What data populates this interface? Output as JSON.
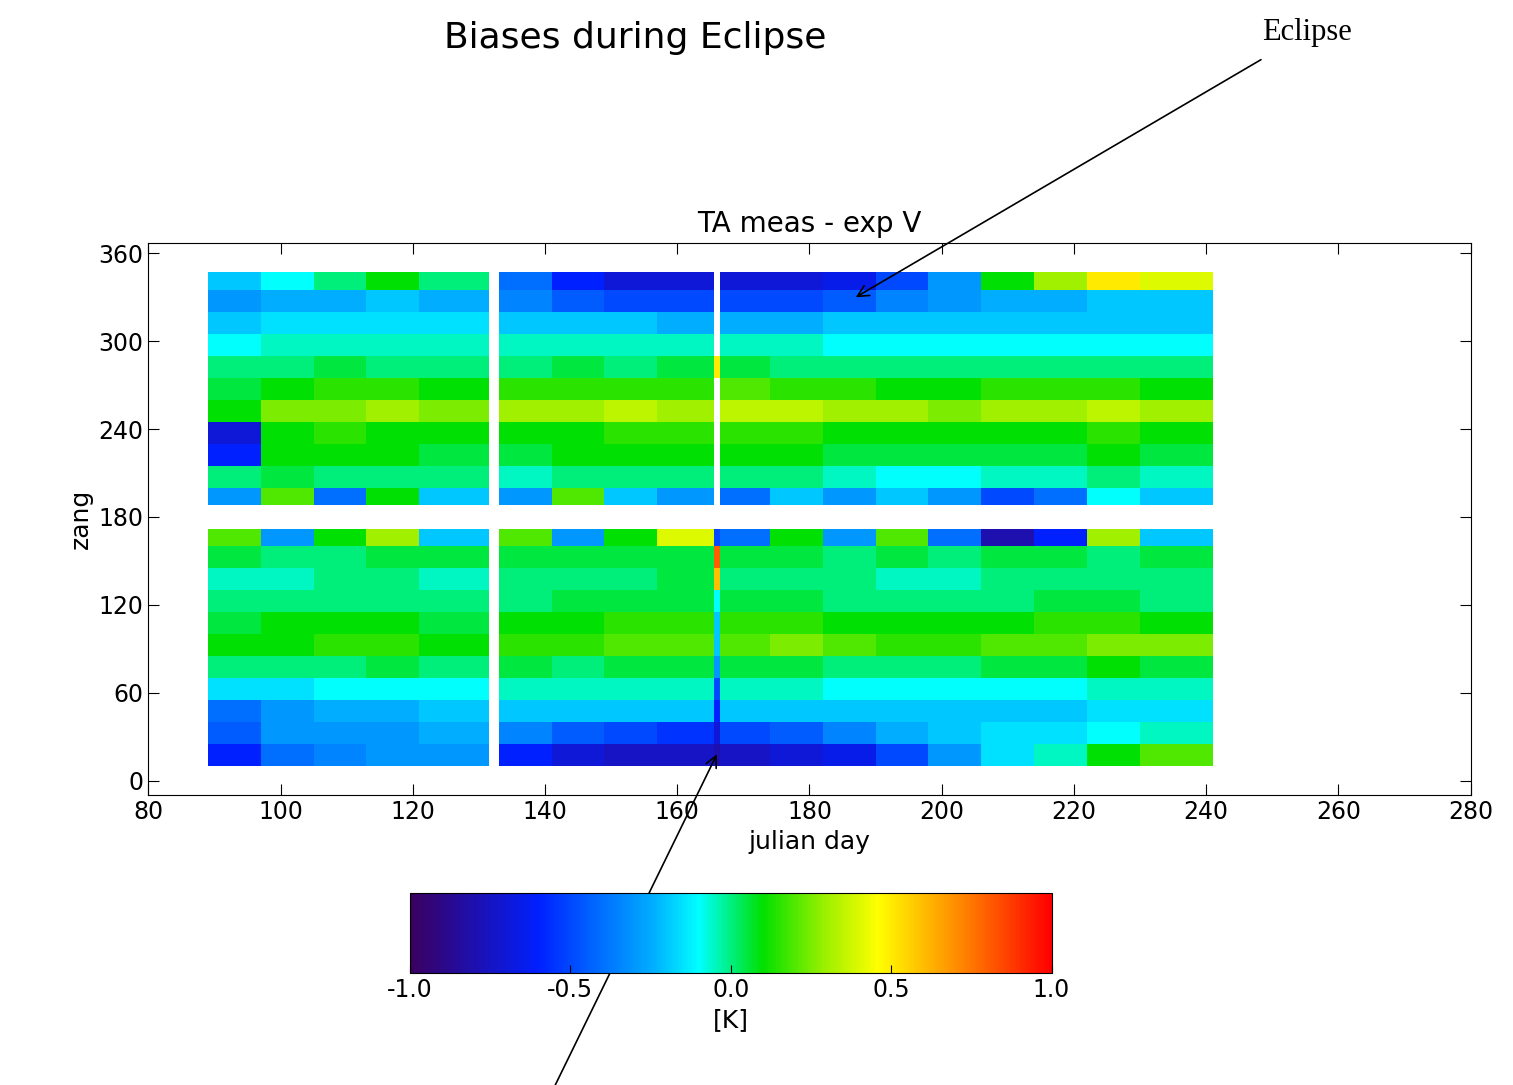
{
  "chart_data": {
    "type": "heatmap",
    "title": "Biases during Eclipse",
    "subtitle": "TA meas - exp V",
    "x_label": "julian day",
    "y_label": "zang",
    "xlim": [
      80,
      280
    ],
    "xticks": [
      80,
      100,
      120,
      140,
      160,
      180,
      200,
      220,
      240,
      260,
      280
    ],
    "ylim": [
      -10,
      367
    ],
    "yticks": [
      0,
      60,
      120,
      180,
      240,
      300,
      360
    ],
    "x_edges": [
      89,
      97,
      105,
      113,
      121,
      131.5,
      133,
      141,
      149,
      157,
      165.5,
      166.5,
      174,
      182,
      190,
      198,
      206,
      214,
      222,
      230,
      241
    ],
    "y_edges": [
      10,
      25,
      40,
      55,
      70,
      85,
      100,
      115,
      130,
      145,
      160,
      172,
      188,
      200,
      215,
      230,
      245,
      260,
      275,
      290,
      305,
      320,
      335,
      347
    ],
    "cells": [
      [
        -0.6,
        -0.4,
        -0.35,
        -0.3,
        -0.3,
        null,
        -0.6,
        -0.7,
        -0.75,
        -0.75,
        -0.8,
        -0.75,
        -0.7,
        -0.65,
        -0.5,
        -0.3,
        -0.15,
        -0.05,
        0.1,
        0.2
      ],
      [
        -0.45,
        -0.3,
        -0.3,
        -0.3,
        -0.25,
        null,
        -0.35,
        -0.45,
        -0.5,
        -0.55,
        -0.7,
        -0.5,
        -0.45,
        -0.35,
        -0.25,
        -0.2,
        -0.15,
        -0.15,
        -0.1,
        -0.05
      ],
      [
        -0.4,
        -0.3,
        -0.25,
        -0.25,
        -0.2,
        null,
        -0.2,
        -0.2,
        -0.2,
        -0.2,
        -0.6,
        -0.2,
        -0.2,
        -0.2,
        -0.2,
        -0.2,
        -0.2,
        -0.2,
        -0.15,
        -0.15
      ],
      [
        -0.15,
        -0.15,
        -0.1,
        -0.1,
        -0.1,
        null,
        -0.05,
        -0.05,
        -0.05,
        -0.05,
        -0.5,
        -0.05,
        -0.05,
        -0.1,
        -0.1,
        -0.1,
        -0.1,
        -0.1,
        -0.05,
        -0.05
      ],
      [
        0.0,
        0.0,
        0.0,
        0.05,
        0.0,
        null,
        0.05,
        0.0,
        0.05,
        0.05,
        -0.3,
        0.05,
        0.05,
        0.0,
        0.0,
        0.0,
        0.05,
        0.05,
        0.1,
        0.05
      ],
      [
        0.1,
        0.1,
        0.15,
        0.15,
        0.1,
        null,
        0.15,
        0.15,
        0.2,
        0.2,
        -0.2,
        0.2,
        0.25,
        0.2,
        0.15,
        0.15,
        0.2,
        0.2,
        0.25,
        0.25
      ],
      [
        0.05,
        0.1,
        0.1,
        0.1,
        0.05,
        null,
        0.1,
        0.1,
        0.15,
        0.15,
        -0.2,
        0.15,
        0.15,
        0.1,
        0.1,
        0.1,
        0.1,
        0.15,
        0.15,
        0.1
      ],
      [
        0.0,
        0.0,
        0.0,
        0.0,
        0.0,
        null,
        0.0,
        0.05,
        0.05,
        0.05,
        -0.1,
        0.05,
        0.05,
        0.0,
        0.0,
        0.0,
        0.0,
        0.05,
        0.05,
        0.0
      ],
      [
        -0.05,
        -0.05,
        0.0,
        0.0,
        -0.05,
        null,
        0.0,
        0.0,
        0.0,
        0.05,
        0.6,
        0.0,
        0.0,
        0.0,
        -0.05,
        -0.05,
        0.0,
        0.0,
        0.0,
        0.0
      ],
      [
        0.05,
        0.0,
        0.0,
        0.05,
        0.05,
        null,
        0.05,
        0.05,
        0.05,
        0.05,
        0.8,
        0.05,
        0.05,
        0.0,
        0.05,
        0.0,
        0.05,
        0.05,
        0.0,
        0.05
      ],
      [
        0.2,
        -0.3,
        0.1,
        0.3,
        -0.2,
        null,
        0.2,
        -0.3,
        0.1,
        0.4,
        -0.5,
        -0.4,
        0.1,
        -0.3,
        0.2,
        -0.4,
        -0.8,
        -0.6,
        0.3,
        -0.2
      ],
      [
        null,
        null,
        null,
        null,
        null,
        null,
        null,
        null,
        null,
        null,
        null,
        null,
        null,
        null,
        null,
        null,
        null,
        null,
        null,
        null
      ],
      [
        -0.3,
        0.2,
        -0.4,
        0.1,
        -0.2,
        null,
        -0.3,
        0.2,
        -0.2,
        -0.3,
        null,
        -0.4,
        -0.2,
        -0.3,
        -0.2,
        -0.3,
        -0.5,
        -0.4,
        -0.1,
        -0.2
      ],
      [
        0.0,
        0.05,
        0.0,
        0.0,
        0.0,
        null,
        -0.05,
        0.0,
        0.0,
        0.0,
        null,
        0.0,
        0.0,
        -0.05,
        -0.1,
        -0.1,
        -0.05,
        -0.05,
        0.0,
        -0.05
      ],
      [
        -0.6,
        0.1,
        0.1,
        0.1,
        0.05,
        null,
        0.05,
        0.1,
        0.1,
        0.1,
        null,
        0.1,
        0.1,
        0.05,
        0.05,
        0.05,
        0.05,
        0.05,
        0.1,
        0.05
      ],
      [
        -0.7,
        0.1,
        0.15,
        0.1,
        0.1,
        null,
        0.1,
        0.1,
        0.15,
        0.15,
        null,
        0.15,
        0.15,
        0.1,
        0.1,
        0.1,
        0.1,
        0.1,
        0.15,
        0.1
      ],
      [
        0.1,
        0.25,
        0.25,
        0.3,
        0.25,
        null,
        0.3,
        0.3,
        0.35,
        0.3,
        null,
        0.35,
        0.35,
        0.3,
        0.3,
        0.25,
        0.3,
        0.3,
        0.35,
        0.3
      ],
      [
        0.05,
        0.1,
        0.15,
        0.15,
        0.1,
        null,
        0.15,
        0.15,
        0.15,
        0.15,
        null,
        0.2,
        0.15,
        0.15,
        0.1,
        0.1,
        0.15,
        0.15,
        0.15,
        0.1
      ],
      [
        0.0,
        0.0,
        0.05,
        0.0,
        0.0,
        null,
        0.0,
        0.05,
        0.0,
        0.05,
        0.5,
        0.05,
        0.0,
        0.0,
        0.0,
        0.0,
        0.0,
        0.0,
        0.0,
        0.0
      ],
      [
        -0.1,
        -0.05,
        -0.05,
        -0.05,
        -0.05,
        null,
        -0.05,
        -0.05,
        -0.05,
        -0.05,
        null,
        -0.05,
        -0.05,
        -0.1,
        -0.1,
        -0.1,
        -0.1,
        -0.1,
        -0.1,
        -0.1
      ],
      [
        -0.2,
        -0.15,
        -0.15,
        -0.15,
        -0.15,
        null,
        -0.2,
        -0.2,
        -0.2,
        -0.25,
        null,
        -0.25,
        -0.25,
        -0.2,
        -0.2,
        -0.2,
        -0.2,
        -0.2,
        -0.2,
        -0.2
      ],
      [
        -0.3,
        -0.25,
        -0.25,
        -0.2,
        -0.25,
        null,
        -0.35,
        -0.45,
        -0.5,
        -0.5,
        null,
        -0.5,
        -0.5,
        -0.45,
        -0.35,
        -0.3,
        -0.25,
        -0.25,
        -0.2,
        -0.2
      ],
      [
        -0.2,
        -0.1,
        0.0,
        0.1,
        0.0,
        null,
        -0.4,
        -0.6,
        -0.7,
        -0.7,
        null,
        -0.7,
        -0.7,
        -0.65,
        -0.5,
        -0.3,
        0.1,
        0.3,
        0.5,
        0.4
      ]
    ],
    "colorbar": {
      "range": [
        -1.0,
        1.0
      ],
      "ticks": [
        {
          "value": -1.0,
          "label": "-1.0"
        },
        {
          "value": -0.5,
          "label": "-0.5"
        },
        {
          "value": 0.0,
          "label": "0.0"
        },
        {
          "value": 0.5,
          "label": "0.5"
        },
        {
          "value": 1.0,
          "label": "1.0"
        }
      ],
      "label": "[K]"
    },
    "annotations": [
      {
        "text": "Eclipse",
        "points": [
          [
            187,
            330
          ],
          [
            166,
            18
          ]
        ]
      }
    ]
  }
}
